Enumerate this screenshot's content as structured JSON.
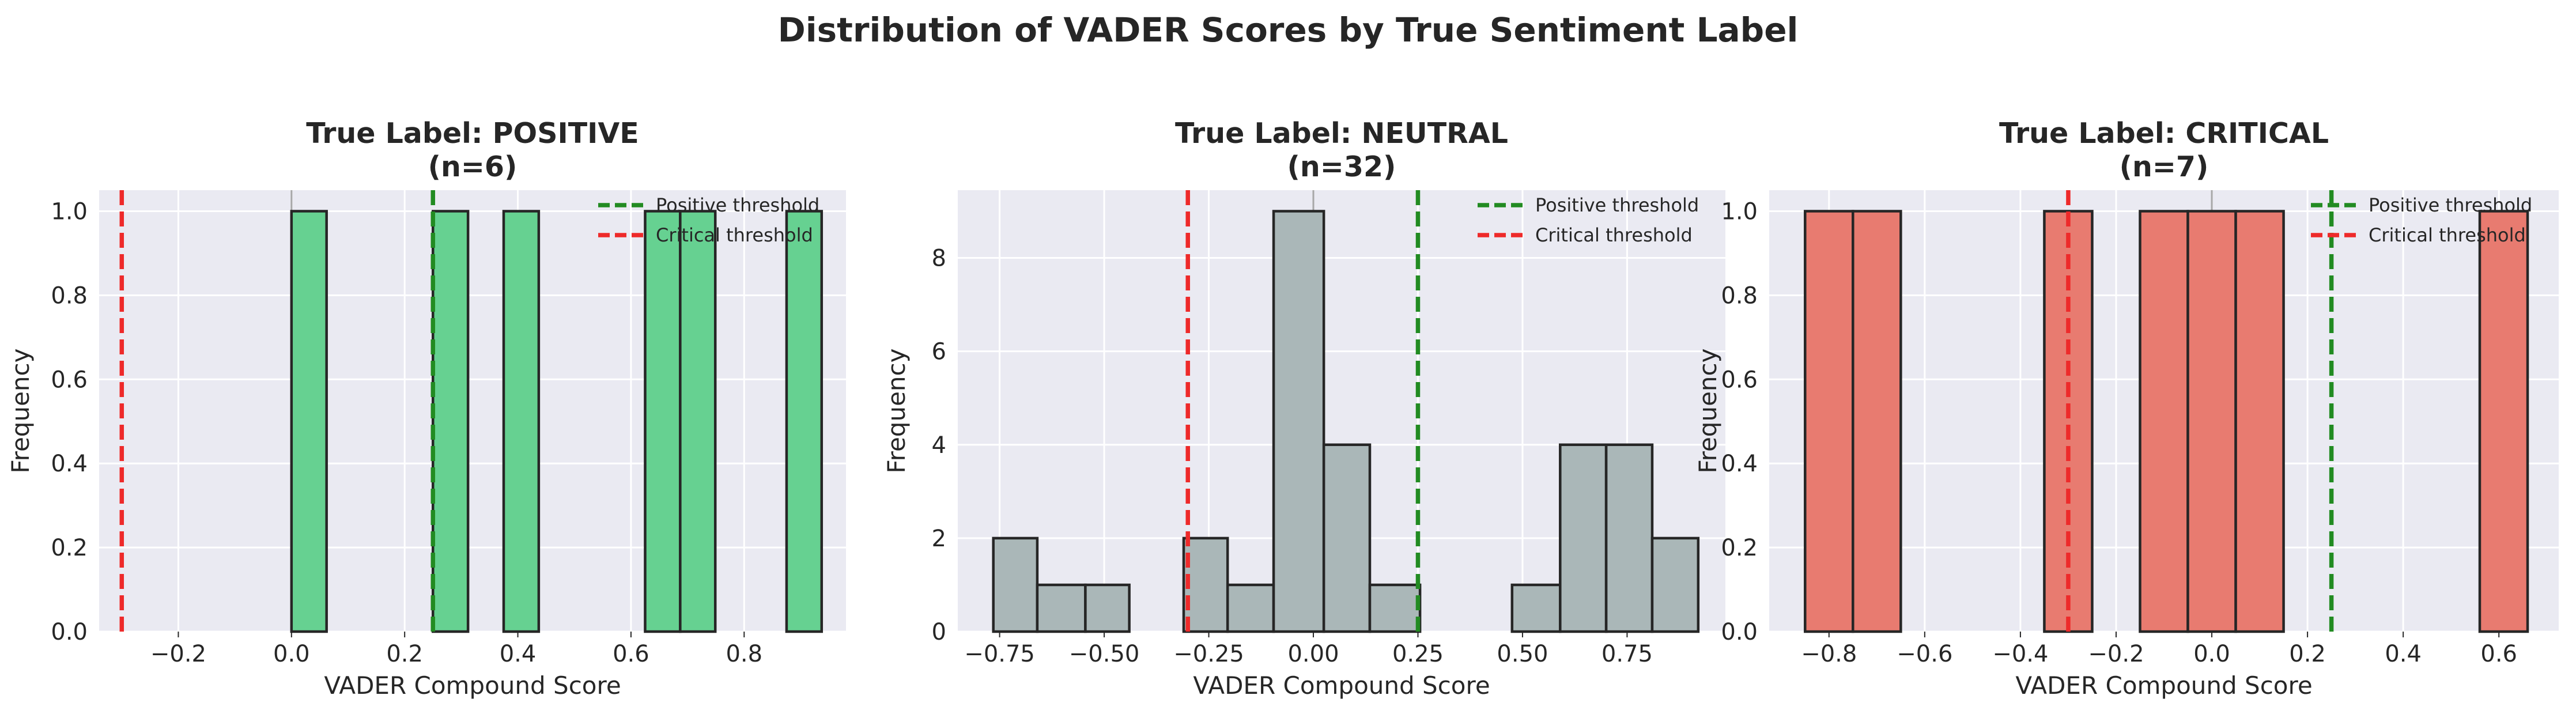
{
  "figure_title": "Distribution of VADER Scores by True Sentiment Label",
  "colors": {
    "background": "#eaeaf2",
    "grid": "#ffffff",
    "positive_bar": "#66d191",
    "neutral_bar": "#aab7b8",
    "critical_bar": "#e87b70",
    "bar_edge": "#262626",
    "positive_threshold_line": "#228b22",
    "critical_threshold_line": "#ee2a2a",
    "zero_line": "#a8a8a8"
  },
  "chart_data": [
    {
      "type": "bar",
      "title_line1": "True Label: POSITIVE",
      "title_line2": "(n=6)",
      "xlabel": "VADER Compound Score",
      "ylabel": "Frequency",
      "xlim": [
        -0.34,
        0.98
      ],
      "ylim": [
        0,
        1.05
      ],
      "xticks": [
        -0.2,
        0.0,
        0.2,
        0.4,
        0.6,
        0.8
      ],
      "xtick_labels": [
        "−0.2",
        "0.0",
        "0.2",
        "0.4",
        "0.6",
        "0.8"
      ],
      "yticks": [
        0.0,
        0.2,
        0.4,
        0.6,
        0.8,
        1.0
      ],
      "ytick_labels": [
        "0.0",
        "0.2",
        "0.4",
        "0.6",
        "0.8",
        "1.0"
      ],
      "grid": true,
      "bar_color_key": "positive_bar",
      "bins": [
        {
          "x0": 0.0,
          "x1": 0.062,
          "count": 1
        },
        {
          "x0": 0.25,
          "x1": 0.312,
          "count": 1
        },
        {
          "x0": 0.375,
          "x1": 0.437,
          "count": 1
        },
        {
          "x0": 0.625,
          "x1": 0.687,
          "count": 1
        },
        {
          "x0": 0.687,
          "x1": 0.749,
          "count": 1
        },
        {
          "x0": 0.875,
          "x1": 0.937,
          "count": 1
        }
      ],
      "thresholds": [
        {
          "name": "Positive threshold",
          "value": 0.25,
          "color_key": "positive_threshold_line"
        },
        {
          "name": "Critical threshold",
          "value": -0.3,
          "color_key": "critical_threshold_line"
        }
      ],
      "legend": {
        "placement": "upper right",
        "entries": [
          "Positive threshold",
          "Critical threshold"
        ]
      }
    },
    {
      "type": "bar",
      "title_line1": "True Label: NEUTRAL",
      "title_line2": "(n=32)",
      "xlabel": "VADER Compound Score",
      "ylabel": "Frequency",
      "xlim": [
        -0.85,
        0.985
      ],
      "ylim": [
        0,
        9.45
      ],
      "xticks": [
        -0.75,
        -0.5,
        -0.25,
        0.0,
        0.25,
        0.5,
        0.75
      ],
      "xtick_labels": [
        "−0.75",
        "−0.50",
        "−0.25",
        "0.00",
        "0.25",
        "0.50",
        "0.75"
      ],
      "yticks": [
        0,
        2,
        4,
        6,
        8
      ],
      "ytick_labels": [
        "0",
        "2",
        "4",
        "6",
        "8"
      ],
      "grid": true,
      "bar_color_key": "neutral_bar",
      "bins": [
        {
          "x0": -0.765,
          "x1": -0.66,
          "count": 2
        },
        {
          "x0": -0.66,
          "x1": -0.545,
          "count": 1
        },
        {
          "x0": -0.545,
          "x1": -0.44,
          "count": 1
        },
        {
          "x0": -0.31,
          "x1": -0.205,
          "count": 2
        },
        {
          "x0": -0.205,
          "x1": -0.095,
          "count": 1
        },
        {
          "x0": -0.095,
          "x1": 0.025,
          "count": 9
        },
        {
          "x0": 0.025,
          "x1": 0.135,
          "count": 4
        },
        {
          "x0": 0.135,
          "x1": 0.255,
          "count": 1
        },
        {
          "x0": 0.475,
          "x1": 0.59,
          "count": 1
        },
        {
          "x0": 0.59,
          "x1": 0.7,
          "count": 4
        },
        {
          "x0": 0.7,
          "x1": 0.81,
          "count": 4
        },
        {
          "x0": 0.81,
          "x1": 0.92,
          "count": 2
        }
      ],
      "thresholds": [
        {
          "name": "Positive threshold",
          "value": 0.25,
          "color_key": "positive_threshold_line"
        },
        {
          "name": "Critical threshold",
          "value": -0.3,
          "color_key": "critical_threshold_line"
        }
      ],
      "legend": {
        "placement": "upper right",
        "entries": [
          "Positive threshold",
          "Critical threshold"
        ]
      }
    },
    {
      "type": "bar",
      "title_line1": "True Label: CRITICAL",
      "title_line2": "(n=7)",
      "xlabel": "VADER Compound Score",
      "ylabel": "Frequency",
      "xlim": [
        -0.925,
        0.725
      ],
      "ylim": [
        0,
        1.05
      ],
      "xticks": [
        -0.8,
        -0.6,
        -0.4,
        -0.2,
        0.0,
        0.2,
        0.4,
        0.6
      ],
      "xtick_labels": [
        "−0.8",
        "−0.6",
        "−0.4",
        "−0.2",
        "0.0",
        "0.2",
        "0.4",
        "0.6"
      ],
      "yticks": [
        0.0,
        0.2,
        0.4,
        0.6,
        0.8,
        1.0
      ],
      "ytick_labels": [
        "0.0",
        "0.2",
        "0.4",
        "0.6",
        "0.8",
        "1.0"
      ],
      "grid": true,
      "bar_color_key": "critical_bar",
      "bins": [
        {
          "x0": -0.85,
          "x1": -0.75,
          "count": 1
        },
        {
          "x0": -0.75,
          "x1": -0.65,
          "count": 1
        },
        {
          "x0": -0.35,
          "x1": -0.25,
          "count": 1
        },
        {
          "x0": -0.15,
          "x1": -0.05,
          "count": 1
        },
        {
          "x0": -0.05,
          "x1": 0.05,
          "count": 1
        },
        {
          "x0": 0.05,
          "x1": 0.15,
          "count": 1
        },
        {
          "x0": 0.56,
          "x1": 0.66,
          "count": 1
        }
      ],
      "thresholds": [
        {
          "name": "Positive threshold",
          "value": 0.25,
          "color_key": "positive_threshold_line"
        },
        {
          "name": "Critical threshold",
          "value": -0.3,
          "color_key": "critical_threshold_line"
        }
      ],
      "legend": {
        "placement": "upper right",
        "entries": [
          "Positive threshold",
          "Critical threshold"
        ]
      }
    }
  ]
}
